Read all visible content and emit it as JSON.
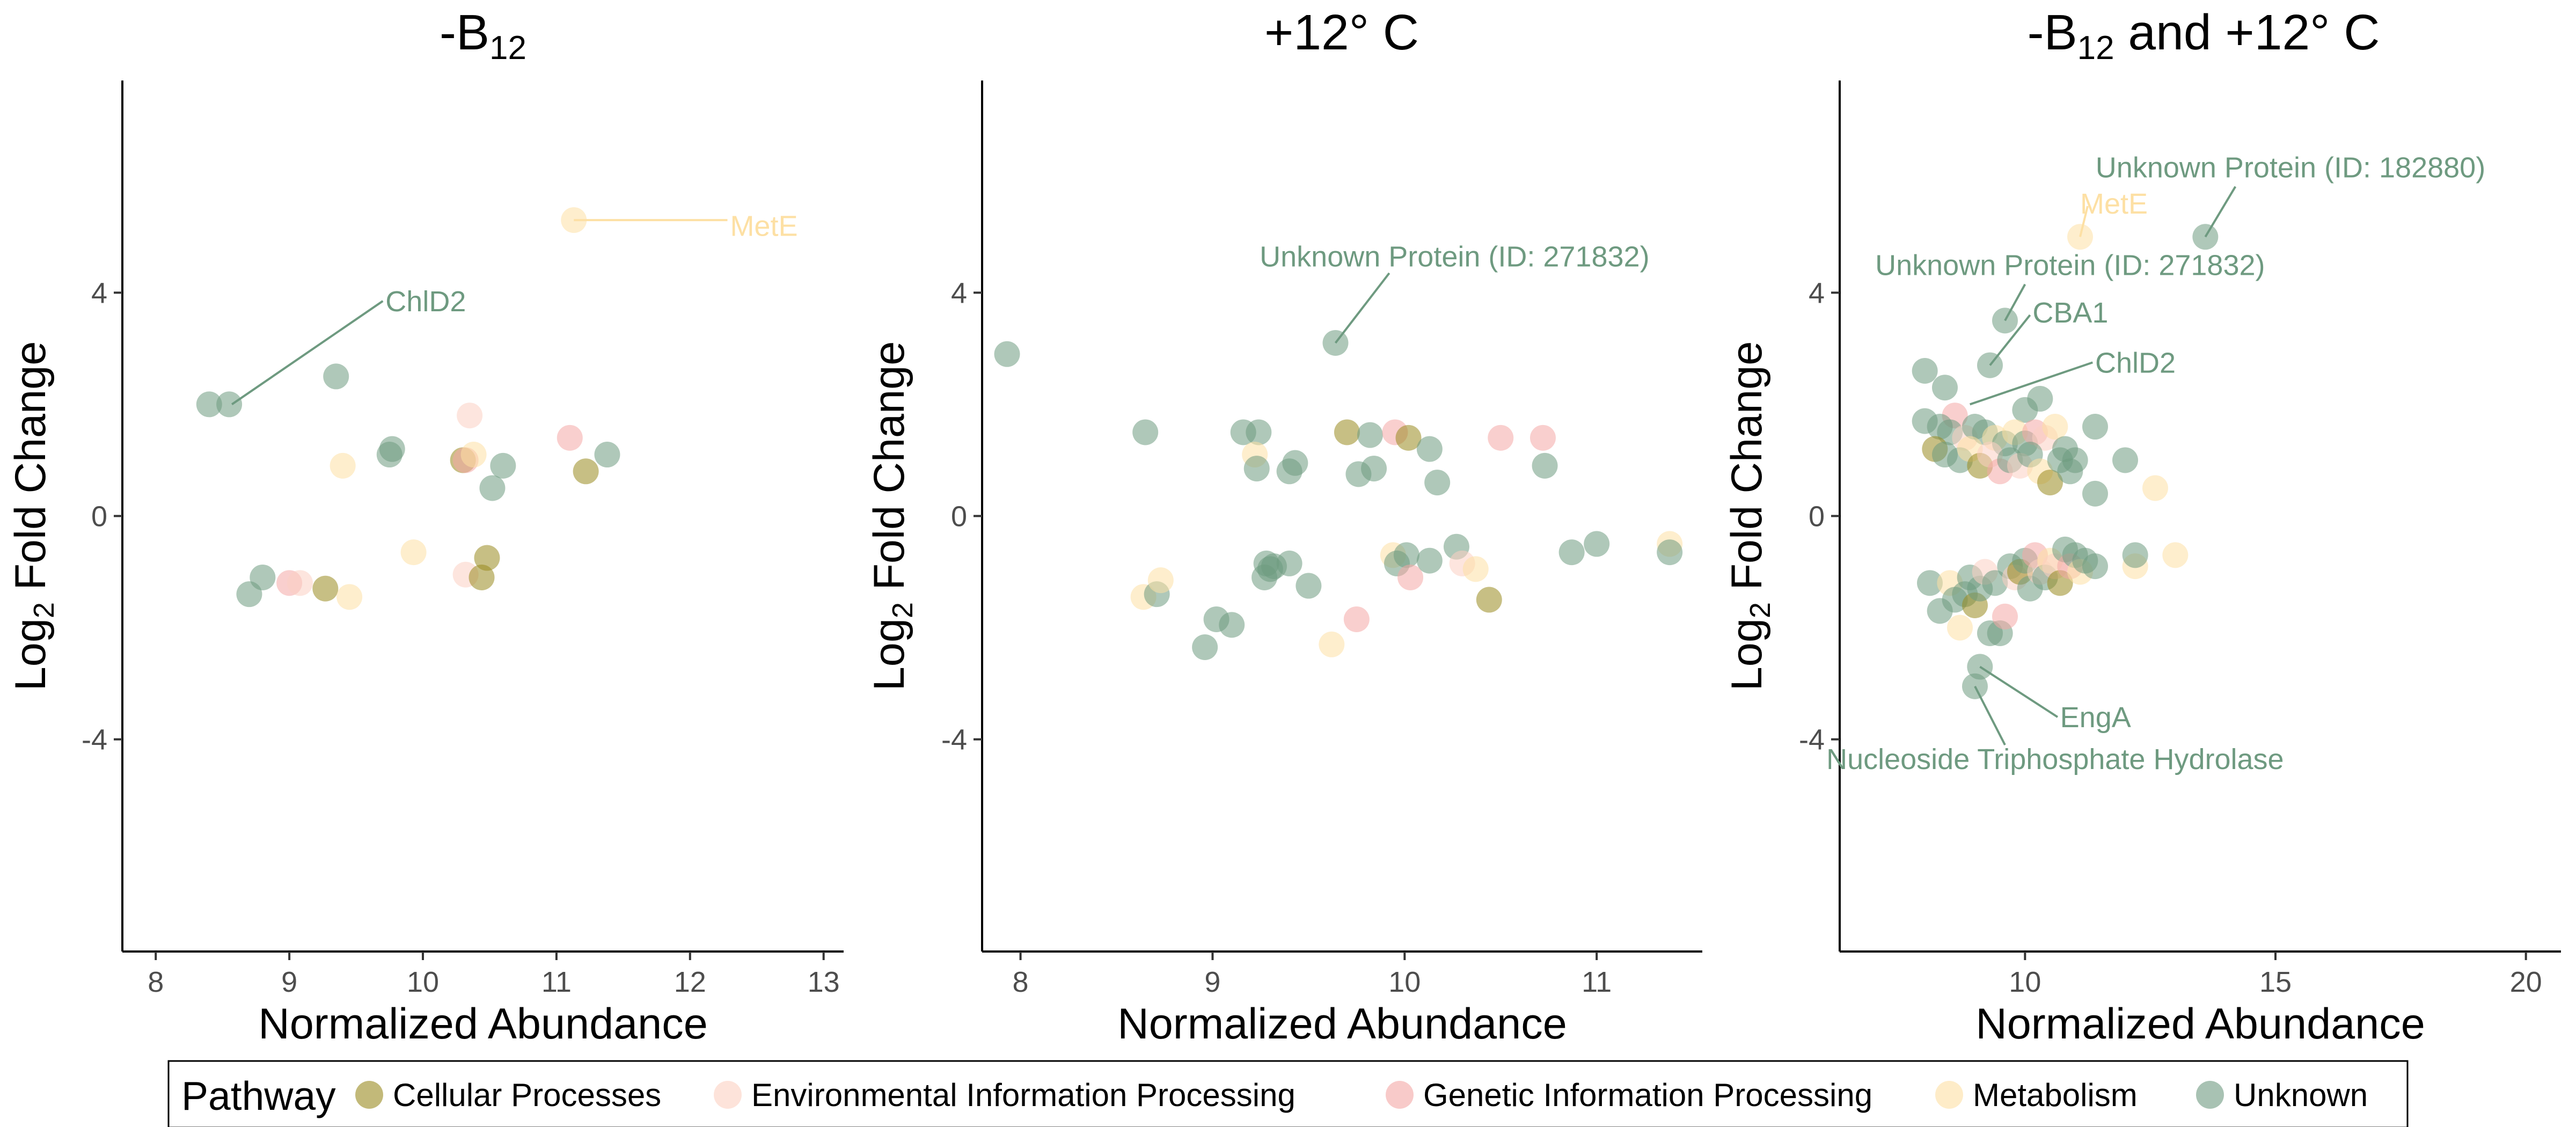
{
  "colors": {
    "Cellular Processes": "#998a1f",
    "Environmental Information Processing": "#fbd0c2",
    "Genetic Information Processing": "#f4a7a5",
    "Metabolism": "#fde0a4",
    "Unknown": "#6e9a80"
  },
  "legend": {
    "title": "Pathway",
    "entries": [
      "Cellular Processes",
      "Environmental Information Processing",
      "Genetic Information Processing",
      "Metabolism",
      "Unknown"
    ]
  },
  "chart_data": [
    {
      "type": "scatter",
      "title": "-B",
      "title_sub": "12",
      "title_rest": "",
      "xlabel": "Normalized Abundance",
      "ylabel": "Log",
      "ylabel_sub": "2",
      "ylabel_rest": " Fold Change",
      "xlim": [
        7.75,
        13.15
      ],
      "ylim": [
        -7.8,
        7.8
      ],
      "xticks": [
        "8",
        "9",
        "10",
        "11",
        "12",
        "13"
      ],
      "yticks": [
        "-4",
        "0",
        "4"
      ],
      "points": [
        {
          "x": 8.4,
          "y": 2.0,
          "p": "Unknown"
        },
        {
          "x": 8.55,
          "y": 2.0,
          "p": "Unknown"
        },
        {
          "x": 9.35,
          "y": 2.5,
          "p": "Unknown"
        },
        {
          "x": 9.75,
          "y": 1.1,
          "p": "Unknown"
        },
        {
          "x": 9.77,
          "y": 1.2,
          "p": "Unknown"
        },
        {
          "x": 9.4,
          "y": 0.9,
          "p": "Metabolism"
        },
        {
          "x": 10.3,
          "y": 1.0,
          "p": "Cellular Processes"
        },
        {
          "x": 10.32,
          "y": 1.0,
          "p": "Genetic Information Processing"
        },
        {
          "x": 10.35,
          "y": 1.8,
          "p": "Environmental Information Processing"
        },
        {
          "x": 10.38,
          "y": 1.1,
          "p": "Metabolism"
        },
        {
          "x": 10.52,
          "y": 0.5,
          "p": "Unknown"
        },
        {
          "x": 10.6,
          "y": 0.9,
          "p": "Unknown"
        },
        {
          "x": 11.1,
          "y": 1.4,
          "p": "Genetic Information Processing"
        },
        {
          "x": 11.22,
          "y": 0.8,
          "p": "Cellular Processes"
        },
        {
          "x": 11.38,
          "y": 1.1,
          "p": "Unknown"
        },
        {
          "x": 11.13,
          "y": 5.3,
          "p": "Metabolism"
        },
        {
          "x": 9.93,
          "y": -0.65,
          "p": "Metabolism"
        },
        {
          "x": 10.32,
          "y": -1.05,
          "p": "Environmental Information Processing"
        },
        {
          "x": 10.44,
          "y": -1.1,
          "p": "Cellular Processes"
        },
        {
          "x": 10.48,
          "y": -0.75,
          "p": "Cellular Processes"
        },
        {
          "x": 8.7,
          "y": -1.4,
          "p": "Unknown"
        },
        {
          "x": 8.8,
          "y": -1.1,
          "p": "Unknown"
        },
        {
          "x": 9.0,
          "y": -1.2,
          "p": "Genetic Information Processing"
        },
        {
          "x": 9.08,
          "y": -1.2,
          "p": "Environmental Information Processing"
        },
        {
          "x": 9.27,
          "y": -1.3,
          "p": "Cellular Processes"
        },
        {
          "x": 9.45,
          "y": -1.45,
          "p": "Metabolism"
        }
      ],
      "annotations": [
        {
          "text": "ChlD2",
          "x": 9.72,
          "y": 3.85,
          "anchor": "start",
          "px": 8.57,
          "py": 2.0,
          "lx": 9.7,
          "ly": 3.85,
          "p": "Unknown"
        },
        {
          "text": "MetE",
          "x": 12.3,
          "y": 5.2,
          "anchor": "start",
          "px": 11.13,
          "py": 5.3,
          "lx": 12.28,
          "ly": 5.3,
          "p": "Metabolism"
        }
      ]
    },
    {
      "type": "scatter",
      "title": "+12° C",
      "title_sub": "",
      "title_rest": "",
      "xlabel": "Normalized Abundance",
      "ylabel": "Log",
      "ylabel_sub": "2",
      "ylabel_rest": " Fold Change",
      "xlim": [
        7.8,
        11.55
      ],
      "ylim": [
        -7.8,
        7.8
      ],
      "xticks": [
        "8",
        "9",
        "10",
        "11"
      ],
      "yticks": [
        "-4",
        "0",
        "4"
      ],
      "points": [
        {
          "x": 7.93,
          "y": 2.9,
          "p": "Unknown"
        },
        {
          "x": 9.64,
          "y": 3.1,
          "p": "Unknown"
        },
        {
          "x": 8.65,
          "y": 1.5,
          "p": "Unknown"
        },
        {
          "x": 9.16,
          "y": 1.5,
          "p": "Unknown"
        },
        {
          "x": 9.24,
          "y": 1.5,
          "p": "Unknown"
        },
        {
          "x": 9.22,
          "y": 1.1,
          "p": "Metabolism"
        },
        {
          "x": 9.23,
          "y": 0.85,
          "p": "Unknown"
        },
        {
          "x": 9.4,
          "y": 0.8,
          "p": "Unknown"
        },
        {
          "x": 9.43,
          "y": 0.95,
          "p": "Unknown"
        },
        {
          "x": 9.7,
          "y": 1.5,
          "p": "Cellular Processes"
        },
        {
          "x": 9.82,
          "y": 1.45,
          "p": "Unknown"
        },
        {
          "x": 9.95,
          "y": 1.5,
          "p": "Genetic Information Processing"
        },
        {
          "x": 10.02,
          "y": 1.4,
          "p": "Cellular Processes"
        },
        {
          "x": 9.76,
          "y": 0.75,
          "p": "Unknown"
        },
        {
          "x": 9.84,
          "y": 0.85,
          "p": "Unknown"
        },
        {
          "x": 10.13,
          "y": 1.2,
          "p": "Unknown"
        },
        {
          "x": 10.17,
          "y": 0.6,
          "p": "Unknown"
        },
        {
          "x": 10.5,
          "y": 1.4,
          "p": "Genetic Information Processing"
        },
        {
          "x": 10.72,
          "y": 1.4,
          "p": "Genetic Information Processing"
        },
        {
          "x": 10.73,
          "y": 0.9,
          "p": "Unknown"
        },
        {
          "x": 8.64,
          "y": -1.45,
          "p": "Metabolism"
        },
        {
          "x": 8.71,
          "y": -1.4,
          "p": "Unknown"
        },
        {
          "x": 8.73,
          "y": -1.15,
          "p": "Metabolism"
        },
        {
          "x": 8.96,
          "y": -2.35,
          "p": "Unknown"
        },
        {
          "x": 9.02,
          "y": -1.85,
          "p": "Unknown"
        },
        {
          "x": 9.1,
          "y": -1.95,
          "p": "Unknown"
        },
        {
          "x": 9.28,
          "y": -0.85,
          "p": "Unknown"
        },
        {
          "x": 9.3,
          "y": -0.95,
          "p": "Unknown"
        },
        {
          "x": 9.27,
          "y": -1.1,
          "p": "Unknown"
        },
        {
          "x": 9.32,
          "y": -0.9,
          "p": "Unknown"
        },
        {
          "x": 9.4,
          "y": -0.85,
          "p": "Unknown"
        },
        {
          "x": 9.5,
          "y": -1.25,
          "p": "Unknown"
        },
        {
          "x": 9.62,
          "y": -2.3,
          "p": "Metabolism"
        },
        {
          "x": 9.75,
          "y": -1.85,
          "p": "Genetic Information Processing"
        },
        {
          "x": 9.94,
          "y": -0.7,
          "p": "Metabolism"
        },
        {
          "x": 9.96,
          "y": -0.85,
          "p": "Unknown"
        },
        {
          "x": 10.01,
          "y": -0.7,
          "p": "Unknown"
        },
        {
          "x": 10.03,
          "y": -1.1,
          "p": "Genetic Information Processing"
        },
        {
          "x": 10.13,
          "y": -0.8,
          "p": "Unknown"
        },
        {
          "x": 10.27,
          "y": -0.55,
          "p": "Unknown"
        },
        {
          "x": 10.3,
          "y": -0.85,
          "p": "Environmental Information Processing"
        },
        {
          "x": 10.37,
          "y": -0.95,
          "p": "Metabolism"
        },
        {
          "x": 10.44,
          "y": -1.5,
          "p": "Cellular Processes"
        },
        {
          "x": 10.87,
          "y": -0.65,
          "p": "Unknown"
        },
        {
          "x": 11.0,
          "y": -0.5,
          "p": "Unknown"
        },
        {
          "x": 11.38,
          "y": -0.5,
          "p": "Metabolism"
        },
        {
          "x": 11.38,
          "y": -0.65,
          "p": "Unknown"
        }
      ],
      "annotations": [
        {
          "text": "Unknown Protein (ID: 271832)",
          "x": 10.26,
          "y": 4.65,
          "anchor": "middle",
          "px": 9.64,
          "py": 3.1,
          "lx": 9.92,
          "ly": 4.35,
          "p": "Unknown"
        }
      ]
    },
    {
      "type": "scatter",
      "title": "-B",
      "title_sub": "12",
      "title_rest": " and +12° C",
      "xlabel": "Normalized Abundance",
      "ylabel": "Log",
      "ylabel_sub": "2",
      "ylabel_rest": " Fold Change",
      "xlim": [
        6.3,
        20.7
      ],
      "ylim": [
        -7.8,
        7.8
      ],
      "xticks": [
        "10",
        "15",
        "20"
      ],
      "yticks": [
        "-4",
        "0",
        "4"
      ],
      "points": [
        {
          "x": 13.6,
          "y": 5.0,
          "p": "Unknown"
        },
        {
          "x": 11.1,
          "y": 5.0,
          "p": "Metabolism"
        },
        {
          "x": 9.6,
          "y": 3.5,
          "p": "Unknown"
        },
        {
          "x": 9.3,
          "y": 2.7,
          "p": "Unknown"
        },
        {
          "x": 8.0,
          "y": 2.6,
          "p": "Unknown"
        },
        {
          "x": 8.4,
          "y": 2.3,
          "p": "Unknown"
        },
        {
          "x": 10.3,
          "y": 2.1,
          "p": "Unknown"
        },
        {
          "x": 10.0,
          "y": 1.9,
          "p": "Unknown"
        },
        {
          "x": 8.6,
          "y": 1.8,
          "p": "Genetic Information Processing"
        },
        {
          "x": 8.0,
          "y": 1.7,
          "p": "Unknown"
        },
        {
          "x": 8.3,
          "y": 1.6,
          "p": "Unknown"
        },
        {
          "x": 8.5,
          "y": 1.5,
          "p": "Unknown"
        },
        {
          "x": 8.8,
          "y": 1.4,
          "p": "Environmental Information Processing"
        },
        {
          "x": 9.0,
          "y": 1.6,
          "p": "Unknown"
        },
        {
          "x": 9.2,
          "y": 1.5,
          "p": "Unknown"
        },
        {
          "x": 9.4,
          "y": 1.4,
          "p": "Metabolism"
        },
        {
          "x": 9.6,
          "y": 1.3,
          "p": "Unknown"
        },
        {
          "x": 9.8,
          "y": 1.5,
          "p": "Metabolism"
        },
        {
          "x": 10.0,
          "y": 1.3,
          "p": "Unknown"
        },
        {
          "x": 10.2,
          "y": 1.5,
          "p": "Genetic Information Processing"
        },
        {
          "x": 10.4,
          "y": 1.4,
          "p": "Environmental Information Processing"
        },
        {
          "x": 10.6,
          "y": 1.6,
          "p": "Metabolism"
        },
        {
          "x": 10.8,
          "y": 1.2,
          "p": "Unknown"
        },
        {
          "x": 11.0,
          "y": 1.0,
          "p": "Unknown"
        },
        {
          "x": 11.4,
          "y": 1.6,
          "p": "Unknown"
        },
        {
          "x": 12.0,
          "y": 1.0,
          "p": "Unknown"
        },
        {
          "x": 12.6,
          "y": 0.5,
          "p": "Metabolism"
        },
        {
          "x": 8.2,
          "y": 1.2,
          "p": "Cellular Processes"
        },
        {
          "x": 8.4,
          "y": 1.1,
          "p": "Unknown"
        },
        {
          "x": 8.7,
          "y": 1.0,
          "p": "Unknown"
        },
        {
          "x": 8.9,
          "y": 1.2,
          "p": "Metabolism"
        },
        {
          "x": 9.1,
          "y": 0.9,
          "p": "Cellular Processes"
        },
        {
          "x": 9.3,
          "y": 1.1,
          "p": "Environmental Information Processing"
        },
        {
          "x": 9.5,
          "y": 0.8,
          "p": "Genetic Information Processing"
        },
        {
          "x": 9.7,
          "y": 1.0,
          "p": "Unknown"
        },
        {
          "x": 9.9,
          "y": 0.9,
          "p": "Environmental Information Processing"
        },
        {
          "x": 10.1,
          "y": 1.1,
          "p": "Unknown"
        },
        {
          "x": 10.3,
          "y": 0.8,
          "p": "Metabolism"
        },
        {
          "x": 10.5,
          "y": 0.6,
          "p": "Cellular Processes"
        },
        {
          "x": 10.7,
          "y": 1.0,
          "p": "Unknown"
        },
        {
          "x": 10.9,
          "y": 0.8,
          "p": "Unknown"
        },
        {
          "x": 11.4,
          "y": 0.4,
          "p": "Unknown"
        },
        {
          "x": 8.1,
          "y": -1.2,
          "p": "Unknown"
        },
        {
          "x": 8.3,
          "y": -1.7,
          "p": "Unknown"
        },
        {
          "x": 8.5,
          "y": -1.2,
          "p": "Metabolism"
        },
        {
          "x": 8.6,
          "y": -1.5,
          "p": "Unknown"
        },
        {
          "x": 8.7,
          "y": -2.0,
          "p": "Metabolism"
        },
        {
          "x": 8.8,
          "y": -1.4,
          "p": "Unknown"
        },
        {
          "x": 8.9,
          "y": -1.1,
          "p": "Unknown"
        },
        {
          "x": 9.0,
          "y": -1.6,
          "p": "Cellular Processes"
        },
        {
          "x": 9.1,
          "y": -1.3,
          "p": "Unknown"
        },
        {
          "x": 9.2,
          "y": -1.0,
          "p": "Environmental Information Processing"
        },
        {
          "x": 9.3,
          "y": -2.1,
          "p": "Unknown"
        },
        {
          "x": 9.4,
          "y": -1.2,
          "p": "Unknown"
        },
        {
          "x": 9.5,
          "y": -2.1,
          "p": "Unknown"
        },
        {
          "x": 9.6,
          "y": -1.8,
          "p": "Genetic Information Processing"
        },
        {
          "x": 9.7,
          "y": -0.9,
          "p": "Unknown"
        },
        {
          "x": 9.8,
          "y": -1.1,
          "p": "Environmental Information Processing"
        },
        {
          "x": 9.9,
          "y": -1.0,
          "p": "Cellular Processes"
        },
        {
          "x": 10.0,
          "y": -0.8,
          "p": "Unknown"
        },
        {
          "x": 10.1,
          "y": -1.3,
          "p": "Unknown"
        },
        {
          "x": 10.2,
          "y": -0.7,
          "p": "Genetic Information Processing"
        },
        {
          "x": 10.3,
          "y": -1.0,
          "p": "Environmental Information Processing"
        },
        {
          "x": 10.4,
          "y": -1.1,
          "p": "Unknown"
        },
        {
          "x": 10.5,
          "y": -0.8,
          "p": "Metabolism"
        },
        {
          "x": 10.6,
          "y": -0.9,
          "p": "Environmental Information Processing"
        },
        {
          "x": 10.7,
          "y": -1.2,
          "p": "Cellular Processes"
        },
        {
          "x": 10.8,
          "y": -0.6,
          "p": "Unknown"
        },
        {
          "x": 10.9,
          "y": -0.9,
          "p": "Genetic Information Processing"
        },
        {
          "x": 11.0,
          "y": -0.7,
          "p": "Unknown"
        },
        {
          "x": 11.1,
          "y": -1.0,
          "p": "Metabolism"
        },
        {
          "x": 11.2,
          "y": -0.8,
          "p": "Unknown"
        },
        {
          "x": 11.4,
          "y": -0.9,
          "p": "Unknown"
        },
        {
          "x": 12.2,
          "y": -0.9,
          "p": "Metabolism"
        },
        {
          "x": 12.2,
          "y": -0.7,
          "p": "Unknown"
        },
        {
          "x": 13.0,
          "y": -0.7,
          "p": "Metabolism"
        },
        {
          "x": 9.1,
          "y": -2.7,
          "p": "Unknown"
        },
        {
          "x": 9.0,
          "y": -3.05,
          "p": "Unknown"
        }
      ],
      "annotations": [
        {
          "text": "Unknown Protein (ID: 182880)",
          "x": 15.3,
          "y": 6.25,
          "anchor": "middle",
          "px": 13.6,
          "py": 5.0,
          "lx": 14.2,
          "ly": 5.9,
          "p": "Unknown"
        },
        {
          "text": "MetE",
          "x": 11.1,
          "y": 5.6,
          "anchor": "start",
          "px": 11.1,
          "py": 5.0,
          "lx": 11.25,
          "ly": 5.55,
          "p": "Metabolism"
        },
        {
          "text": "Unknown Protein (ID: 271832)",
          "x": 10.9,
          "y": 4.5,
          "anchor": "middle",
          "px": 9.6,
          "py": 3.5,
          "lx": 10.0,
          "ly": 4.15,
          "p": "Unknown"
        },
        {
          "text": "CBA1",
          "x": 10.15,
          "y": 3.65,
          "anchor": "start",
          "px": 9.3,
          "py": 2.7,
          "lx": 10.1,
          "ly": 3.6,
          "p": "Unknown"
        },
        {
          "text": "ChlD2",
          "x": 11.4,
          "y": 2.75,
          "anchor": "start",
          "px": 8.9,
          "py": 2.0,
          "lx": 11.35,
          "ly": 2.75,
          "p": "Unknown"
        },
        {
          "text": "EngA",
          "x": 10.7,
          "y": -3.6,
          "anchor": "start",
          "px": 9.1,
          "py": -2.7,
          "lx": 10.65,
          "ly": -3.6,
          "p": "Unknown"
        },
        {
          "text": "Nucleoside Triphosphate Hydrolase",
          "x": 10.6,
          "y": -4.35,
          "anchor": "middle",
          "px": 9.0,
          "py": -3.05,
          "lx": 9.6,
          "ly": -4.1,
          "p": "Unknown"
        }
      ]
    }
  ]
}
